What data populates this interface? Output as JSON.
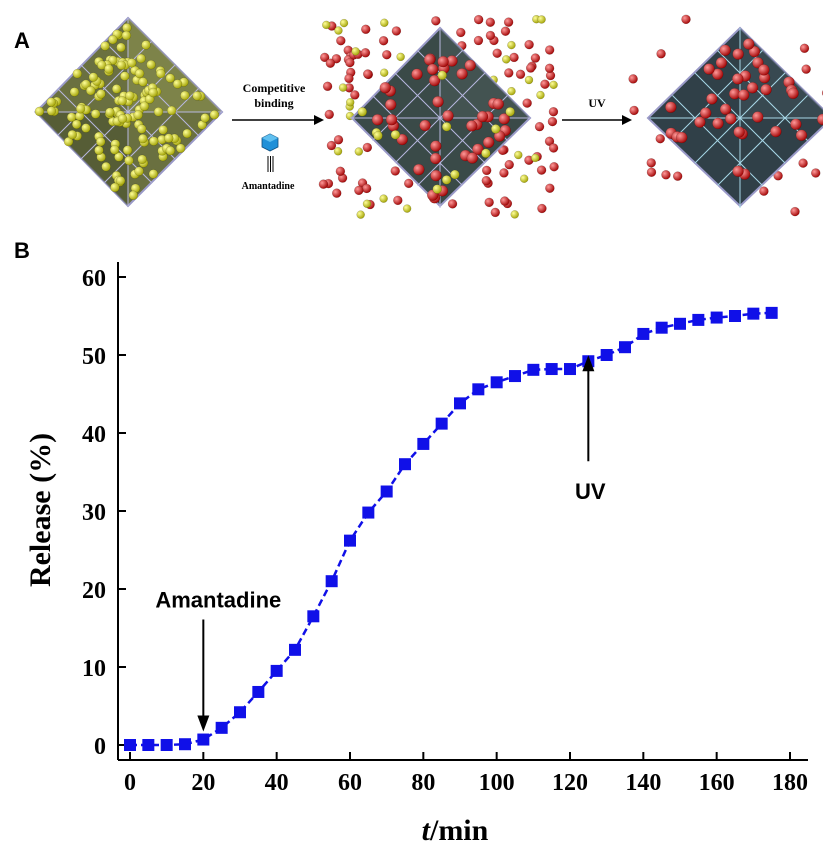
{
  "panels": {
    "a": "A",
    "b": "B"
  },
  "scheme": {
    "step1_label_line1": "Competitive",
    "step1_label_line2": "binding",
    "molecule_label": "Amantadine",
    "step2_label": "UV"
  },
  "colors": {
    "series": "#1010e8",
    "framework": "#8a8ab0",
    "guest_yellow": "#d8d820",
    "drug_red": "#d42020",
    "cyan": "#30c8d8",
    "molecule_blue": "#2090d8"
  },
  "chart_data": {
    "type": "line",
    "xlabel_italic": "t",
    "xlabel_rest": "/min",
    "ylabel": "Release (%)",
    "xlim": [
      0,
      180
    ],
    "ylim": [
      0,
      60
    ],
    "xticks": [
      0,
      20,
      40,
      60,
      80,
      100,
      120,
      140,
      160,
      180
    ],
    "yticks": [
      0,
      10,
      20,
      30,
      40,
      50,
      60
    ],
    "grid": false,
    "series": [
      {
        "marker": "square",
        "line": "dashed",
        "color": "#1010e8",
        "points": [
          [
            0,
            0
          ],
          [
            5,
            0
          ],
          [
            10,
            0
          ],
          [
            15,
            0.1
          ],
          [
            20,
            0.7
          ],
          [
            25,
            2.2
          ],
          [
            30,
            4.2
          ],
          [
            35,
            6.8
          ],
          [
            40,
            9.5
          ],
          [
            45,
            12.2
          ],
          [
            50,
            16.5
          ],
          [
            55,
            21
          ],
          [
            60,
            26.2
          ],
          [
            65,
            29.8
          ],
          [
            70,
            32.5
          ],
          [
            75,
            36
          ],
          [
            80,
            38.6
          ],
          [
            85,
            41.2
          ],
          [
            90,
            43.8
          ],
          [
            95,
            45.6
          ],
          [
            100,
            46.5
          ],
          [
            105,
            47.3
          ],
          [
            110,
            48.1
          ],
          [
            115,
            48.2
          ],
          [
            120,
            48.2
          ],
          [
            125,
            49.2
          ],
          [
            130,
            50
          ],
          [
            135,
            51
          ],
          [
            140,
            52.7
          ],
          [
            145,
            53.5
          ],
          [
            150,
            54
          ],
          [
            155,
            54.5
          ],
          [
            160,
            54.8
          ],
          [
            165,
            55
          ],
          [
            170,
            55.3
          ],
          [
            175,
            55.4
          ]
        ]
      }
    ],
    "annotations": [
      {
        "text": "Amantadine",
        "x": 20,
        "y": 0.7
      },
      {
        "text": "UV",
        "x": 125,
        "y": 49.2
      }
    ]
  }
}
